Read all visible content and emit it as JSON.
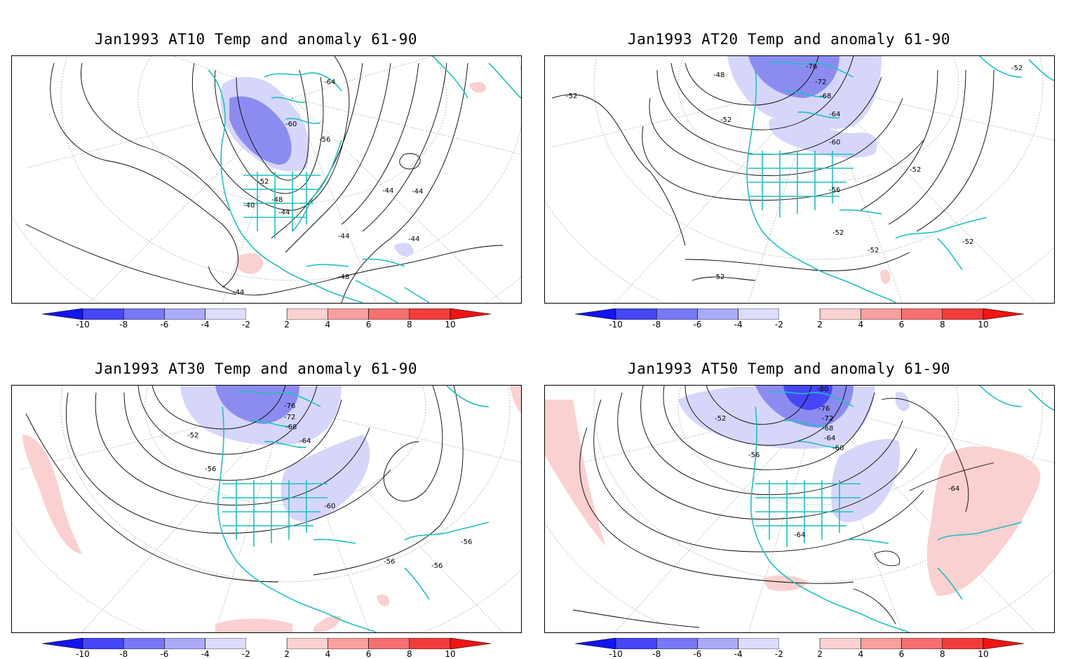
{
  "panels": [
    {
      "title": "Jan1993 AT10 Temp and anomaly 61-90",
      "contour_labels": [
        "-64",
        "-60",
        "-56",
        "-52",
        "-48",
        "-44",
        "-40",
        "-44",
        "-44",
        "-44",
        "-44",
        "-48",
        "-44"
      ],
      "anomalies": {
        "cold_core": "#8c8cf0",
        "cold_outer": "#d6d6fb",
        "warm": "#fbd0d0"
      }
    },
    {
      "title": "Jan1993 AT20 Temp and anomaly 61-90",
      "contour_labels": [
        "-76",
        "-72",
        "-68",
        "-64",
        "-60",
        "-56",
        "-52",
        "-52",
        "-52",
        "-52",
        "-52",
        "-52",
        "-48",
        "-52",
        "-52"
      ],
      "anomalies": {
        "cold_core": "#8c8cf0",
        "cold_outer": "#d6d6fb",
        "warm": "#fbd0d0"
      }
    },
    {
      "title": "Jan1993 AT30 Temp and anomaly 61-90",
      "contour_labels": [
        "-76",
        "-72",
        "-68",
        "-64",
        "-60",
        "-56",
        "-52",
        "-56",
        "-56",
        "-56"
      ],
      "anomalies": {
        "cold_core": "#8c8cf0",
        "cold_outer": "#d6d6fb",
        "warm": "#fbd0d0"
      }
    },
    {
      "title": "Jan1993 AT50 Temp and anomaly 61-90",
      "contour_labels": [
        "-80",
        "-76",
        "-72",
        "-68",
        "-64",
        "-60",
        "-56",
        "-52",
        "-64",
        "-64"
      ],
      "anomalies": {
        "cold_core": "#8c8cf0",
        "cold_outer": "#d6d6fb",
        "warm": "#fbd0d0"
      }
    }
  ],
  "colorbar": {
    "ticks": [
      "-10",
      "-8",
      "-6",
      "-4",
      "-2",
      "2",
      "4",
      "6",
      "8",
      "10"
    ],
    "colors": [
      "#1414f0",
      "#4646f5",
      "#7878f5",
      "#aaaaf8",
      "#dcdcfb",
      "#ffffff",
      "#fbd2d2",
      "#f8a0a0",
      "#f57070",
      "#f23c3c",
      "#f01414"
    ]
  },
  "coast_color": "#1fc0c0"
}
